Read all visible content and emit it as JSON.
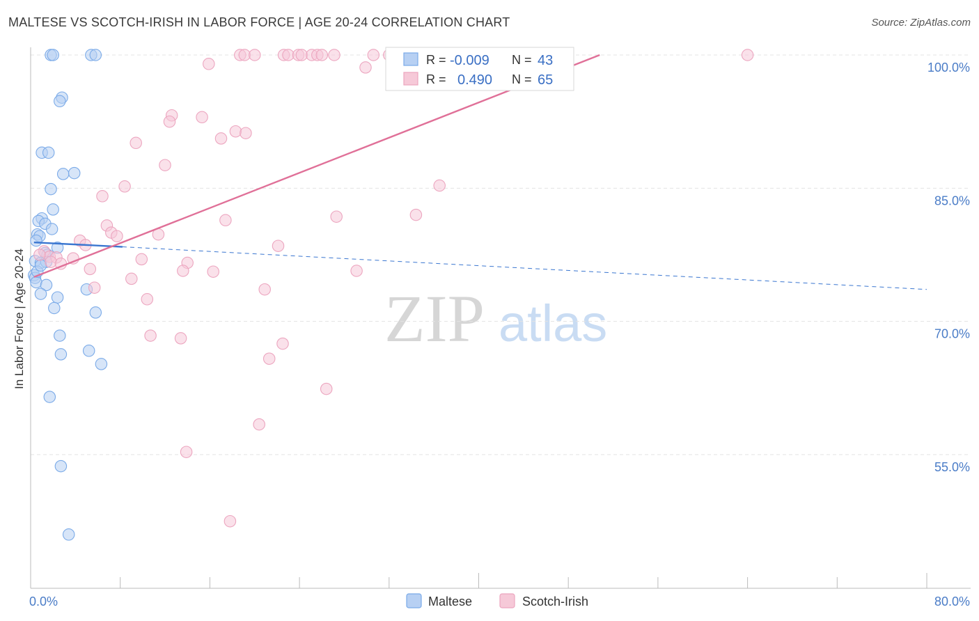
{
  "title": "MALTESE VS SCOTCH-IRISH IN LABOR FORCE | AGE 20-24 CORRELATION CHART",
  "source": "Source: ZipAtlas.com",
  "watermark": {
    "zip": "ZIP",
    "atlas": "atlas"
  },
  "chart_data": {
    "type": "scatter",
    "xlabel": "",
    "ylabel": "In Labor Force | Age 20-24",
    "xlim": [
      0,
      80
    ],
    "ylim": [
      40,
      102
    ],
    "x_tick_labels": {
      "left": "0.0%",
      "right": "80.0%"
    },
    "y_ticks": [
      {
        "value": 100,
        "label": "100.0%"
      },
      {
        "value": 85,
        "label": "85.0%"
      },
      {
        "value": 70,
        "label": "70.0%"
      },
      {
        "value": 55,
        "label": "55.0%"
      }
    ],
    "legend": {
      "r_label": "R =",
      "n_label": "N =",
      "entries": [
        {
          "name": "Maltese",
          "r": "-0.009",
          "n": "43"
        },
        {
          "name": "Scotch-Irish",
          "r": "0.490",
          "n": "65"
        }
      ]
    },
    "series": [
      {
        "name": "Maltese",
        "color": "#7aaae8",
        "fill": "#b7d0f3",
        "line_color": "#3a76d0",
        "trend": {
          "solid": [
            [
              0.3,
              78.9
            ],
            [
              8.2,
              78.4
            ]
          ],
          "dashed": [
            [
              8.2,
              78.4
            ],
            [
              80,
              73.6
            ]
          ]
        },
        "points": [
          [
            1.8,
            100
          ],
          [
            2.0,
            100
          ],
          [
            5.4,
            100
          ],
          [
            5.8,
            100
          ],
          [
            2.8,
            95.2
          ],
          [
            2.6,
            94.8
          ],
          [
            1.0,
            89.0
          ],
          [
            1.6,
            89.0
          ],
          [
            2.9,
            86.6
          ],
          [
            3.9,
            86.7
          ],
          [
            1.8,
            84.9
          ],
          [
            2.0,
            82.6
          ],
          [
            1.0,
            81.6
          ],
          [
            0.7,
            81.3
          ],
          [
            1.3,
            81.0
          ],
          [
            1.9,
            80.4
          ],
          [
            0.6,
            79.8
          ],
          [
            0.8,
            79.6
          ],
          [
            0.5,
            79.1
          ],
          [
            2.4,
            78.3
          ],
          [
            1.3,
            77.7
          ],
          [
            1.5,
            77.5
          ],
          [
            0.4,
            76.8
          ],
          [
            0.9,
            76.6
          ],
          [
            1.4,
            76.7
          ],
          [
            0.3,
            75.2
          ],
          [
            0.4,
            74.9
          ],
          [
            0.5,
            74.4
          ],
          [
            1.4,
            74.1
          ],
          [
            0.9,
            73.1
          ],
          [
            2.4,
            72.7
          ],
          [
            2.1,
            71.5
          ],
          [
            5.0,
            73.6
          ],
          [
            5.8,
            71.0
          ],
          [
            2.6,
            68.4
          ],
          [
            2.7,
            66.3
          ],
          [
            5.2,
            66.7
          ],
          [
            6.3,
            65.2
          ],
          [
            1.7,
            61.5
          ],
          [
            2.7,
            53.7
          ],
          [
            3.4,
            46.0
          ],
          [
            0.6,
            75.6
          ],
          [
            0.9,
            76.3
          ]
        ]
      },
      {
        "name": "Scotch-Irish",
        "color": "#eca5bf",
        "fill": "#f6c9d8",
        "line_color": "#e07098",
        "trend": {
          "solid": [
            [
              0.3,
              75.0
            ],
            [
              50.8,
              100.0
            ]
          ]
        },
        "points": [
          [
            18.7,
            100
          ],
          [
            19.1,
            100
          ],
          [
            20.0,
            100
          ],
          [
            22.6,
            100
          ],
          [
            23.0,
            100
          ],
          [
            23.9,
            100
          ],
          [
            24.2,
            100
          ],
          [
            25.1,
            100
          ],
          [
            25.6,
            100
          ],
          [
            26.0,
            100
          ],
          [
            27.1,
            100
          ],
          [
            30.6,
            100
          ],
          [
            32.0,
            100
          ],
          [
            37.8,
            100
          ],
          [
            43.0,
            100
          ],
          [
            44.0,
            100
          ],
          [
            64.0,
            100
          ],
          [
            15.9,
            99.0
          ],
          [
            29.9,
            98.6
          ],
          [
            12.6,
            93.2
          ],
          [
            12.4,
            92.5
          ],
          [
            15.3,
            93.0
          ],
          [
            18.3,
            91.4
          ],
          [
            19.2,
            91.2
          ],
          [
            17.0,
            90.6
          ],
          [
            9.4,
            90.1
          ],
          [
            12.0,
            87.6
          ],
          [
            8.4,
            85.2
          ],
          [
            6.4,
            84.1
          ],
          [
            36.5,
            85.3
          ],
          [
            6.8,
            80.8
          ],
          [
            7.2,
            80.0
          ],
          [
            7.7,
            79.6
          ],
          [
            11.4,
            79.8
          ],
          [
            17.4,
            81.4
          ],
          [
            27.3,
            81.8
          ],
          [
            34.4,
            82.0
          ],
          [
            4.4,
            79.1
          ],
          [
            4.9,
            78.6
          ],
          [
            22.1,
            78.5
          ],
          [
            1.2,
            77.9
          ],
          [
            1.7,
            77.3
          ],
          [
            2.3,
            77.2
          ],
          [
            3.8,
            77.1
          ],
          [
            9.9,
            77.0
          ],
          [
            1.8,
            76.7
          ],
          [
            2.7,
            76.5
          ],
          [
            14.0,
            76.6
          ],
          [
            5.3,
            75.9
          ],
          [
            13.6,
            75.7
          ],
          [
            16.3,
            75.6
          ],
          [
            29.1,
            75.7
          ],
          [
            9.0,
            74.8
          ],
          [
            5.7,
            73.8
          ],
          [
            20.9,
            73.6
          ],
          [
            10.4,
            72.5
          ],
          [
            10.7,
            68.4
          ],
          [
            13.4,
            68.1
          ],
          [
            22.5,
            67.5
          ],
          [
            21.3,
            65.8
          ],
          [
            26.4,
            62.4
          ],
          [
            20.4,
            58.4
          ],
          [
            13.9,
            55.3
          ],
          [
            17.8,
            47.5
          ],
          [
            0.8,
            77.5
          ]
        ]
      }
    ]
  }
}
